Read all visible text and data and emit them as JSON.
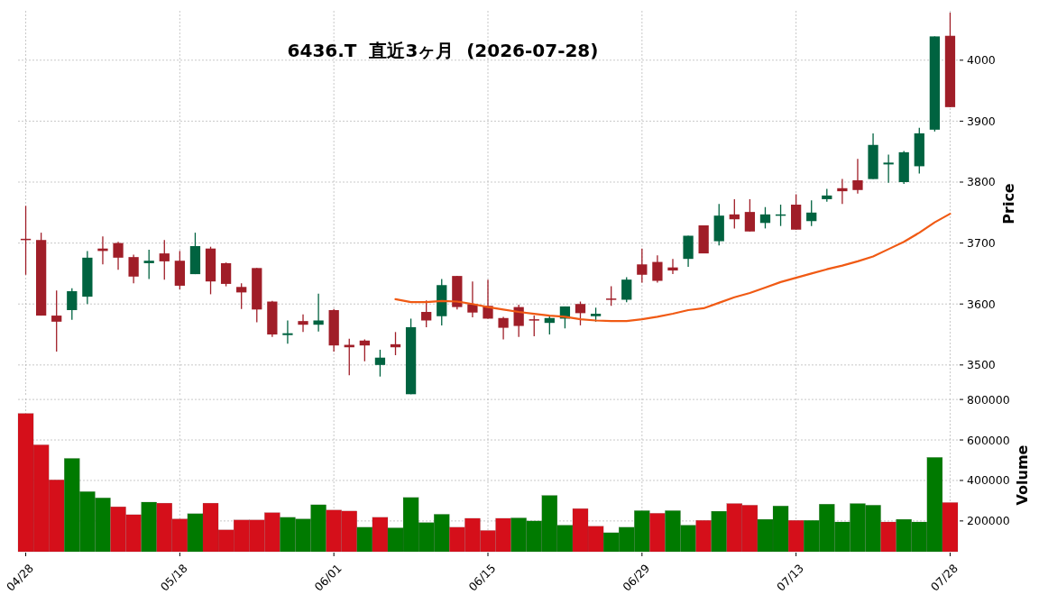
{
  "chart_data": [
    {
      "type": "candlestick",
      "title": "6436.T  直近3ヶ月  (2026-07-28)",
      "ylabel": "Price",
      "tick_labels": "y",
      "grid": true,
      "ylim": [
        3448,
        4081
      ],
      "yticks": [
        3500,
        3600,
        3700,
        3800,
        3900,
        4000
      ],
      "categories": [
        null,
        null,
        null,
        null,
        null,
        null,
        null,
        null,
        null,
        null,
        null,
        null,
        null,
        null,
        null,
        null,
        null,
        null,
        null,
        null,
        null,
        null,
        null,
        null,
        null,
        null,
        null,
        null,
        null,
        null,
        null,
        null,
        null,
        null,
        null,
        null,
        null,
        null,
        null,
        null,
        null,
        null,
        null,
        null,
        null,
        null,
        null,
        null,
        null,
        null,
        null,
        null,
        null,
        null,
        null,
        null,
        null,
        null,
        null,
        null,
        null
      ],
      "ohlc": [
        [
          3707,
          3761,
          3648,
          3706
        ],
        [
          3705,
          3717,
          3581,
          3581
        ],
        [
          3581,
          3622,
          3522,
          3571
        ],
        [
          3590,
          3626,
          3574,
          3621
        ],
        [
          3612,
          3687,
          3600,
          3676
        ],
        [
          3691,
          3711,
          3665,
          3687
        ],
        [
          3700,
          3702,
          3656,
          3676
        ],
        [
          3677,
          3681,
          3634,
          3645
        ],
        [
          3667,
          3689,
          3641,
          3671
        ],
        [
          3683,
          3705,
          3640,
          3670
        ],
        [
          3671,
          3687,
          3624,
          3630
        ],
        [
          3649,
          3717,
          3649,
          3695
        ],
        [
          3691,
          3694,
          3616,
          3637
        ],
        [
          3667,
          3668,
          3629,
          3633
        ],
        [
          3628,
          3634,
          3592,
          3619
        ],
        [
          3659,
          3659,
          3570,
          3591
        ],
        [
          3604,
          3605,
          3546,
          3550
        ],
        [
          3549,
          3573,
          3535,
          3552
        ],
        [
          3572,
          3583,
          3554,
          3566
        ],
        [
          3566,
          3617,
          3555,
          3573
        ],
        [
          3590,
          3592,
          3522,
          3532
        ],
        [
          3533,
          3543,
          3483,
          3529
        ],
        [
          3540,
          3542,
          3506,
          3532
        ],
        [
          3500,
          3525,
          3481,
          3512
        ],
        [
          3534,
          3554,
          3516,
          3529
        ],
        [
          3452,
          3576,
          3452,
          3562
        ],
        [
          3587,
          3606,
          3562,
          3573
        ],
        [
          3580,
          3641,
          3565,
          3631
        ],
        [
          3646,
          3646,
          3591,
          3595
        ],
        [
          3600,
          3637,
          3578,
          3586
        ],
        [
          3597,
          3640,
          3576,
          3576
        ],
        [
          3577,
          3579,
          3542,
          3561
        ],
        [
          3595,
          3599,
          3546,
          3564
        ],
        [
          3575,
          3581,
          3547,
          3573
        ],
        [
          3569,
          3580,
          3550,
          3577
        ],
        [
          3576,
          3596,
          3560,
          3596
        ],
        [
          3600,
          3604,
          3565,
          3585
        ],
        [
          3580,
          3594,
          3571,
          3584
        ],
        [
          3609,
          3629,
          3597,
          3607
        ],
        [
          3607,
          3644,
          3603,
          3640
        ],
        [
          3665,
          3691,
          3635,
          3648
        ],
        [
          3669,
          3680,
          3635,
          3638
        ],
        [
          3660,
          3674,
          3649,
          3655
        ],
        [
          3674,
          3712,
          3661,
          3712
        ],
        [
          3729,
          3729,
          3683,
          3683
        ],
        [
          3703,
          3764,
          3696,
          3745
        ],
        [
          3747,
          3772,
          3724,
          3739
        ],
        [
          3751,
          3772,
          3719,
          3719
        ],
        [
          3733,
          3759,
          3724,
          3747
        ],
        [
          3746,
          3763,
          3728,
          3747
        ],
        [
          3763,
          3780,
          3722,
          3722
        ],
        [
          3736,
          3770,
          3728,
          3750
        ],
        [
          3772,
          3789,
          3768,
          3778
        ],
        [
          3790,
          3805,
          3764,
          3785
        ],
        [
          3803,
          3838,
          3781,
          3787
        ],
        [
          3805,
          3880,
          3805,
          3861
        ],
        [
          3829,
          3845,
          3799,
          3832
        ],
        [
          3800,
          3851,
          3797,
          3849
        ],
        [
          3826,
          3889,
          3814,
          3880
        ],
        [
          3886,
          4039,
          3883,
          4039
        ],
        [
          4040,
          4078,
          3923,
          3923
        ]
      ],
      "colors": [
        "#a01e28",
        "#a01e28",
        "#a01e28",
        "#006340",
        "#006340",
        "#a01e28",
        "#a01e28",
        "#a01e28",
        "#006340",
        "#a01e28",
        "#a01e28",
        "#006340",
        "#a01e28",
        "#a01e28",
        "#a01e28",
        "#a01e28",
        "#a01e28",
        "#006340",
        "#a01e28",
        "#006340",
        "#a01e28",
        "#a01e28",
        "#a01e28",
        "#006340",
        "#a01e28",
        "#006340",
        "#a01e28",
        "#006340",
        "#a01e28",
        "#a01e28",
        "#a01e28",
        "#a01e28",
        "#a01e28",
        "#a01e28",
        "#006340",
        "#006340",
        "#a01e28",
        "#006340",
        "#a01e28",
        "#006340",
        "#a01e28",
        "#a01e28",
        "#a01e28",
        "#006340",
        "#a01e28",
        "#006340",
        "#a01e28",
        "#a01e28",
        "#006340",
        "#006340",
        "#a01e28",
        "#006340",
        "#006340",
        "#a01e28",
        "#a01e28",
        "#006340",
        "#006340",
        "#006340",
        "#006340",
        "#006340",
        "#a01e28"
      ],
      "series": [
        {
          "type": "line",
          "color": "#f05a14",
          "values": [
            null,
            null,
            null,
            null,
            null,
            null,
            null,
            null,
            null,
            null,
            null,
            null,
            null,
            null,
            null,
            null,
            null,
            null,
            null,
            null,
            null,
            null,
            null,
            null,
            3608,
            3603,
            3603,
            3605,
            3604,
            3600,
            3595,
            3591,
            3587,
            3584,
            3581,
            3579,
            3575,
            3573,
            3572,
            3572,
            3575,
            3579,
            3584,
            3590,
            3593,
            3602,
            3611,
            3618,
            3627,
            3636,
            3643,
            3650,
            3657,
            3663,
            3670,
            3678,
            3690,
            3702,
            3717,
            3734,
            3748
          ]
        }
      ]
    },
    {
      "type": "bar",
      "ylabel": "Volume",
      "grid": true,
      "ylim": [
        48000,
        805000
      ],
      "yticks": [
        200000,
        400000,
        600000,
        800000
      ],
      "categories": [
        "04/28",
        null,
        null,
        null,
        null,
        null,
        null,
        null,
        null,
        null,
        "05/18",
        null,
        null,
        null,
        null,
        null,
        null,
        null,
        null,
        null,
        "06/01",
        null,
        null,
        null,
        null,
        null,
        null,
        null,
        null,
        null,
        "06/15",
        null,
        null,
        null,
        null,
        null,
        null,
        null,
        null,
        null,
        "06/29",
        null,
        null,
        null,
        null,
        null,
        null,
        null,
        null,
        null,
        "07/13",
        null,
        null,
        null,
        null,
        null,
        null,
        null,
        null,
        null,
        "07/28"
      ],
      "values": [
        731000,
        576000,
        403000,
        509000,
        345000,
        314000,
        270000,
        231000,
        293000,
        288000,
        210000,
        236000,
        288000,
        156000,
        205000,
        205000,
        241000,
        218000,
        210000,
        280000,
        254000,
        249000,
        169000,
        218000,
        166000,
        316000,
        192000,
        233000,
        169000,
        213000,
        153000,
        213000,
        215000,
        200000,
        326000,
        179000,
        261000,
        174000,
        142000,
        169000,
        251000,
        238000,
        251000,
        179000,
        203000,
        248000,
        286000,
        278000,
        208000,
        274000,
        203000,
        203000,
        283000,
        195000,
        286000,
        278000,
        195000,
        208000,
        195000,
        514000,
        291000
      ],
      "colors": [
        "#d50f1a",
        "#d50f1a",
        "#d50f1a",
        "#007a00",
        "#007a00",
        "#007a00",
        "#d50f1a",
        "#d50f1a",
        "#007a00",
        "#d50f1a",
        "#d50f1a",
        "#007a00",
        "#d50f1a",
        "#d50f1a",
        "#d50f1a",
        "#d50f1a",
        "#d50f1a",
        "#007a00",
        "#007a00",
        "#007a00",
        "#d50f1a",
        "#d50f1a",
        "#007a00",
        "#d50f1a",
        "#007a00",
        "#007a00",
        "#007a00",
        "#007a00",
        "#d50f1a",
        "#d50f1a",
        "#d50f1a",
        "#d50f1a",
        "#007a00",
        "#007a00",
        "#007a00",
        "#007a00",
        "#d50f1a",
        "#d50f1a",
        "#007a00",
        "#007a00",
        "#007a00",
        "#d50f1a",
        "#007a00",
        "#007a00",
        "#d50f1a",
        "#007a00",
        "#d50f1a",
        "#d50f1a",
        "#007a00",
        "#007a00",
        "#d50f1a",
        "#007a00",
        "#007a00",
        "#007a00",
        "#007a00",
        "#007a00",
        "#d50f1a",
        "#007a00",
        "#007a00",
        "#007a00",
        "#d50f1a"
      ]
    }
  ]
}
